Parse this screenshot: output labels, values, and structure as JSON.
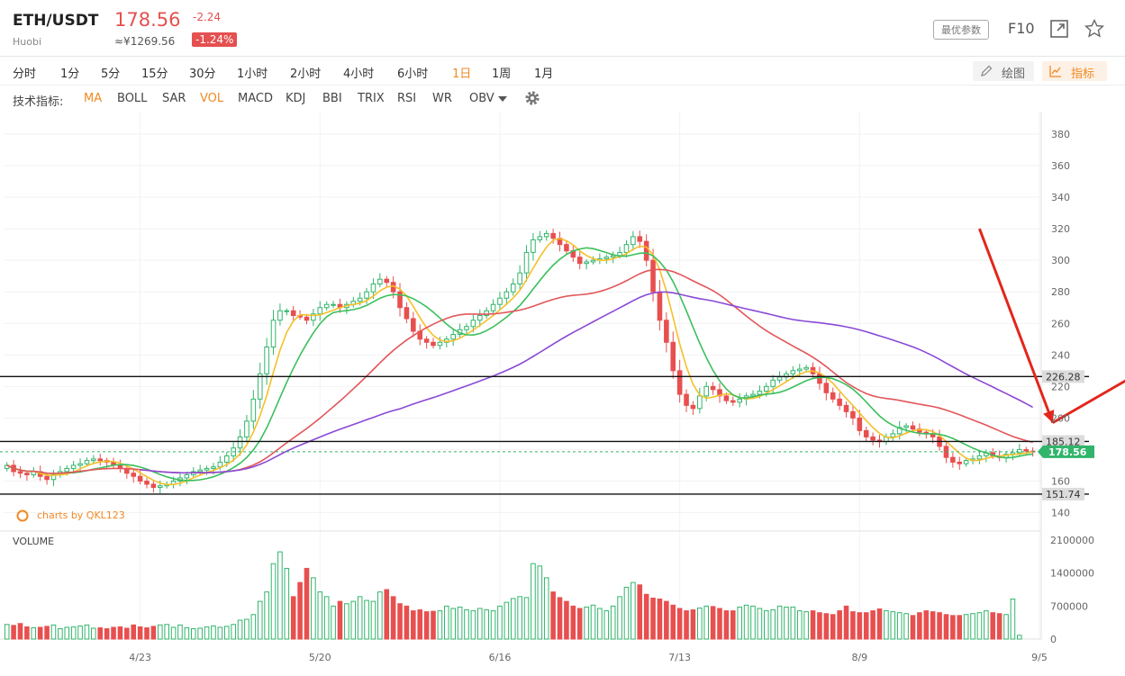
{
  "header": {
    "pair": "ETH/USDT",
    "exchange": "Huobi",
    "price": "178.56",
    "cny_price": "≈¥1269.56",
    "change": "-2.24",
    "change_pct": "-1.24%",
    "params_button": "最优参数",
    "f10_label": "F10",
    "icons": [
      "expand-icon",
      "star-icon"
    ]
  },
  "timeframes": [
    "分时",
    "1分",
    "5分",
    "15分",
    "30分",
    "1小时",
    "2小时",
    "4小时",
    "6小时",
    "1日",
    "1周",
    "1月"
  ],
  "active_timeframe": "1日",
  "tools": {
    "draw_label": "绘图",
    "indicator_label": "指标"
  },
  "indicators": {
    "label": "技术指标:",
    "items": [
      "MA",
      "BOLL",
      "SAR",
      "VOL",
      "MACD",
      "KDJ",
      "BBI",
      "TRIX",
      "RSI",
      "WR",
      "OBV"
    ],
    "active": [
      "MA",
      "VOL"
    ]
  },
  "watermark": "charts by QKL123",
  "colors": {
    "up": "#31b56b",
    "down": "#e84f4f",
    "accent": "#f08a24",
    "ma1": "#f5c02a",
    "ma2": "#3bbf5c",
    "ma3": "#e2565a",
    "ma4": "#8a49d6",
    "annotation": "#e3261b"
  },
  "chart_data": {
    "type": "candlestick",
    "title": "ETH/USDT 1日",
    "x_tick_labels": [
      "4/23",
      "5/20",
      "6/16",
      "7/13",
      "8/9",
      "9/5"
    ],
    "x_tick_index": [
      20,
      47,
      74,
      101,
      128,
      155
    ],
    "y_axis": {
      "ticks": [
        140,
        160,
        180,
        200,
        220,
        240,
        260,
        280,
        300,
        320,
        340,
        360,
        380
      ],
      "range": [
        134,
        392
      ]
    },
    "horizontal_lines": [
      {
        "value": 226.28,
        "label": "226.28"
      },
      {
        "value": 185.12,
        "label": "185.12"
      },
      {
        "value": 151.74,
        "label": "151.74"
      }
    ],
    "last_price": {
      "value": 178.56,
      "label": "178.56"
    },
    "close_series": [
      170,
      166,
      165,
      164,
      166,
      163,
      161,
      164,
      166,
      168,
      170,
      171,
      173,
      174,
      173,
      172,
      170,
      168,
      165,
      163,
      160,
      158,
      156,
      157,
      158,
      160,
      162,
      164,
      166,
      167,
      168,
      169,
      172,
      176,
      181,
      188,
      198,
      212,
      228,
      245,
      262,
      268,
      268,
      265,
      264,
      262,
      266,
      270,
      272,
      272,
      270,
      272,
      274,
      276,
      280,
      285,
      288,
      286,
      280,
      270,
      263,
      255,
      250,
      248,
      246,
      248,
      250,
      253,
      256,
      258,
      262,
      265,
      268,
      272,
      276,
      280,
      285,
      292,
      305,
      313,
      315,
      317,
      314,
      310,
      306,
      302,
      298,
      299,
      300,
      301,
      302,
      303,
      305,
      310,
      315,
      312,
      300,
      280,
      262,
      248,
      230,
      215,
      208,
      206,
      214,
      220,
      218,
      214,
      211,
      210,
      212,
      214,
      215,
      217,
      220,
      224,
      226,
      228,
      230,
      231,
      232,
      228,
      222,
      216,
      212,
      208,
      204,
      200,
      192,
      188,
      186,
      185,
      188,
      190,
      194,
      195,
      193,
      191,
      190,
      188,
      182,
      175,
      172,
      171,
      173,
      174,
      176,
      178,
      176,
      175,
      177,
      178,
      180,
      179,
      178.56
    ],
    "volume": {
      "axis_ticks": [
        0,
        700000,
        1400000,
        2100000
      ],
      "values": [
        310,
        290,
        330,
        260,
        240,
        250,
        270,
        300,
        220,
        250,
        260,
        280,
        300,
        230,
        240,
        220,
        250,
        260,
        230,
        300,
        260,
        240,
        270,
        300,
        310,
        250,
        300,
        240,
        220,
        230,
        260,
        280,
        250,
        270,
        310,
        400,
        420,
        520,
        800,
        1000,
        1600,
        1850,
        1500,
        900,
        1200,
        1500,
        1300,
        1000,
        900,
        700,
        800,
        750,
        800,
        900,
        820,
        800,
        1000,
        1050,
        900,
        750,
        700,
        600,
        620,
        580,
        590,
        600,
        700,
        650,
        680,
        620,
        600,
        650,
        620,
        600,
        700,
        780,
        860,
        900,
        880,
        1600,
        1550,
        1300,
        1000,
        880,
        800,
        700,
        650,
        680,
        720,
        650,
        600,
        700,
        900,
        1100,
        1200,
        1150,
        950,
        870,
        850,
        800,
        720,
        650,
        600,
        620,
        660,
        700,
        690,
        650,
        600,
        600,
        680,
        720,
        700,
        650,
        600,
        620,
        700,
        680,
        680,
        600,
        580,
        600,
        560,
        540,
        520,
        600,
        700,
        580,
        560,
        560,
        600,
        640,
        600,
        580,
        560,
        540,
        500,
        560,
        600,
        580,
        560,
        520,
        500,
        500,
        520,
        540,
        560,
        600,
        560,
        540,
        520,
        850,
        80
      ]
    },
    "series": [
      {
        "name": "MA5",
        "window": 5
      },
      {
        "name": "MA10",
        "window": 10
      },
      {
        "name": "MA30",
        "window": 30
      },
      {
        "name": "MA60",
        "window": 60
      }
    ],
    "annotations": {
      "type": "red zigzag arrows",
      "points": [
        [
          146,
          320
        ],
        [
          157,
          197
        ],
        [
          173,
          236
        ],
        [
          182,
          174
        ],
        [
          199,
          196
        ],
        [
          205,
          169
        ],
        [
          218,
          188
        ],
        [
          225,
          157
        ]
      ]
    }
  }
}
